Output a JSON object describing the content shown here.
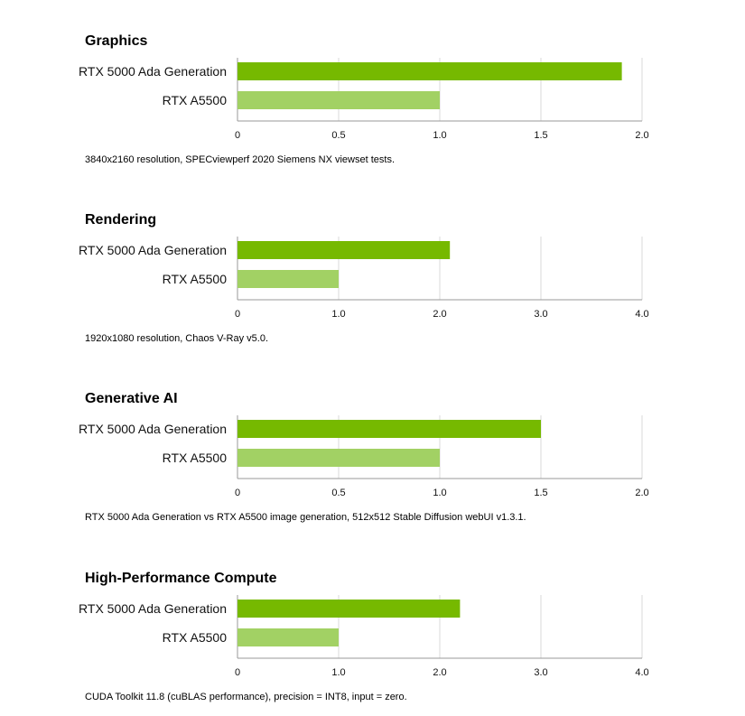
{
  "colors": {
    "primary_bar": "#76b900",
    "secondary_bar": "#a2d164",
    "grid": "#d9d9d9",
    "axis": "#9a9a9a"
  },
  "chart_data": [
    {
      "type": "bar",
      "orientation": "horizontal",
      "title": "Graphics",
      "categories": [
        "RTX 5000 Ada Generation",
        "RTX A5500"
      ],
      "values": [
        1.9,
        1.0
      ],
      "xlim": [
        0,
        2.0
      ],
      "xticks": [
        "0",
        "0.5",
        "1.0",
        "1.5",
        "2.0"
      ],
      "grid": true,
      "footnote": "3840x2160 resolution, SPECviewperf 2020 Siemens NX viewset tests."
    },
    {
      "type": "bar",
      "orientation": "horizontal",
      "title": "Rendering",
      "categories": [
        "RTX 5000 Ada Generation",
        "RTX A5500"
      ],
      "values": [
        2.1,
        1.0
      ],
      "xlim": [
        0,
        4.0
      ],
      "xticks": [
        "0",
        "1.0",
        "2.0",
        "3.0",
        "4.0"
      ],
      "grid": true,
      "footnote": "1920x1080 resolution, Chaos V-Ray v5.0."
    },
    {
      "type": "bar",
      "orientation": "horizontal",
      "title": "Generative AI",
      "categories": [
        "RTX 5000 Ada Generation",
        "RTX A5500"
      ],
      "values": [
        1.5,
        1.0
      ],
      "xlim": [
        0,
        2.0
      ],
      "xticks": [
        "0",
        "0.5",
        "1.0",
        "1.5",
        "2.0"
      ],
      "grid": true,
      "footnote": "RTX 5000 Ada Generation vs RTX A5500 image generation, 512x512 Stable Diffusion webUI v1.3.1."
    },
    {
      "type": "bar",
      "orientation": "horizontal",
      "title": "High-Performance Compute",
      "categories": [
        "RTX 5000 Ada Generation",
        "RTX A5500"
      ],
      "values": [
        2.2,
        1.0
      ],
      "xlim": [
        0,
        4.0
      ],
      "xticks": [
        "0",
        "1.0",
        "2.0",
        "3.0",
        "4.0"
      ],
      "grid": true,
      "footnote": "CUDA Toolkit 11.8 (cuBLAS performance), precision = INT8, input = zero."
    }
  ]
}
